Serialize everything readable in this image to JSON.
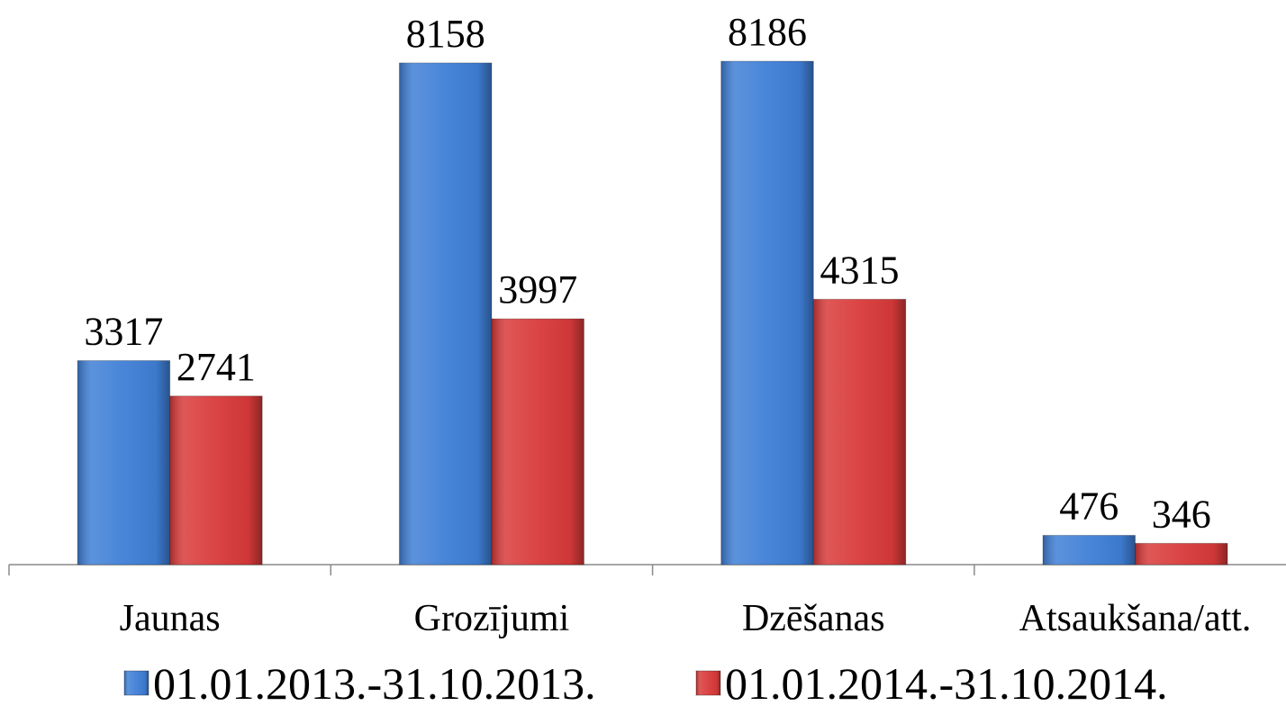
{
  "chart_data": {
    "type": "bar",
    "categories": [
      "Jaunas",
      "Grozījumi",
      "Dzēšanas",
      "Atsaukšana/att."
    ],
    "series": [
      {
        "name": "01.01.2013.-31.10.2013.",
        "color": "#3f7fd6",
        "values": [
          3317,
          8158,
          8186,
          476
        ]
      },
      {
        "name": "01.01.2014.-31.10.2014.",
        "color": "#d93a3a",
        "values": [
          2741,
          3997,
          4315,
          346
        ]
      }
    ],
    "legend": "bottom"
  }
}
